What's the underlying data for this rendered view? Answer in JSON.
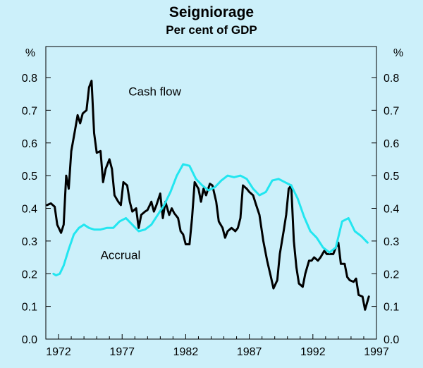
{
  "chart_data": {
    "type": "line",
    "title": "Seigniorage",
    "subtitle": "Per cent of GDP",
    "y_unit_left": "%",
    "y_unit_right": "%",
    "xlim": [
      1971.0,
      1997.0
    ],
    "ylim": [
      0,
      0.8
    ],
    "y_ticks": [
      "0.0",
      "0.1",
      "0.2",
      "0.3",
      "0.4",
      "0.5",
      "0.6",
      "0.7",
      "0.8"
    ],
    "x_ticks": [
      "1972",
      "1977",
      "1982",
      "1987",
      "1992",
      "1997"
    ],
    "grid": false,
    "colors": {
      "background": "#ccf0fa",
      "cash_flow": "#000000",
      "accrual": "#22e6f0",
      "axis": "#000000"
    },
    "series": [
      {
        "name": "Cash flow",
        "color": "#000000",
        "points": [
          [
            1971.1,
            0.41
          ],
          [
            1971.4,
            0.415
          ],
          [
            1971.7,
            0.405
          ],
          [
            1971.9,
            0.35
          ],
          [
            1972.2,
            0.325
          ],
          [
            1972.4,
            0.35
          ],
          [
            1972.6,
            0.5
          ],
          [
            1972.8,
            0.46
          ],
          [
            1973.0,
            0.575
          ],
          [
            1973.3,
            0.64
          ],
          [
            1973.5,
            0.685
          ],
          [
            1973.7,
            0.66
          ],
          [
            1973.9,
            0.69
          ],
          [
            1974.2,
            0.7
          ],
          [
            1974.4,
            0.77
          ],
          [
            1974.6,
            0.79
          ],
          [
            1974.8,
            0.63
          ],
          [
            1975.0,
            0.57
          ],
          [
            1975.3,
            0.575
          ],
          [
            1975.5,
            0.48
          ],
          [
            1975.7,
            0.52
          ],
          [
            1976.0,
            0.55
          ],
          [
            1976.2,
            0.52
          ],
          [
            1976.4,
            0.44
          ],
          [
            1976.7,
            0.42
          ],
          [
            1976.9,
            0.41
          ],
          [
            1977.1,
            0.48
          ],
          [
            1977.4,
            0.47
          ],
          [
            1977.6,
            0.42
          ],
          [
            1977.8,
            0.39
          ],
          [
            1978.1,
            0.4
          ],
          [
            1978.3,
            0.34
          ],
          [
            1978.5,
            0.38
          ],
          [
            1978.8,
            0.39
          ],
          [
            1979.0,
            0.395
          ],
          [
            1979.3,
            0.42
          ],
          [
            1979.5,
            0.39
          ],
          [
            1979.7,
            0.41
          ],
          [
            1980.0,
            0.445
          ],
          [
            1980.2,
            0.37
          ],
          [
            1980.4,
            0.42
          ],
          [
            1980.7,
            0.38
          ],
          [
            1980.9,
            0.4
          ],
          [
            1981.1,
            0.385
          ],
          [
            1981.4,
            0.37
          ],
          [
            1981.6,
            0.33
          ],
          [
            1981.8,
            0.32
          ],
          [
            1982.0,
            0.29
          ],
          [
            1982.3,
            0.29
          ],
          [
            1982.5,
            0.37
          ],
          [
            1982.7,
            0.48
          ],
          [
            1983.0,
            0.46
          ],
          [
            1983.2,
            0.42
          ],
          [
            1983.4,
            0.46
          ],
          [
            1983.6,
            0.44
          ],
          [
            1983.9,
            0.475
          ],
          [
            1984.1,
            0.47
          ],
          [
            1984.4,
            0.42
          ],
          [
            1984.6,
            0.36
          ],
          [
            1984.9,
            0.34
          ],
          [
            1985.1,
            0.31
          ],
          [
            1985.3,
            0.33
          ],
          [
            1985.6,
            0.34
          ],
          [
            1985.9,
            0.33
          ],
          [
            1986.1,
            0.34
          ],
          [
            1986.3,
            0.37
          ],
          [
            1986.5,
            0.47
          ],
          [
            1986.8,
            0.46
          ],
          [
            1987.0,
            0.45
          ],
          [
            1987.3,
            0.44
          ],
          [
            1987.5,
            0.415
          ],
          [
            1987.8,
            0.38
          ],
          [
            1988.1,
            0.3
          ],
          [
            1988.4,
            0.24
          ],
          [
            1988.7,
            0.19
          ],
          [
            1988.9,
            0.155
          ],
          [
            1989.2,
            0.18
          ],
          [
            1989.4,
            0.26
          ],
          [
            1989.7,
            0.33
          ],
          [
            1989.9,
            0.38
          ],
          [
            1990.1,
            0.46
          ],
          [
            1990.3,
            0.47
          ],
          [
            1990.5,
            0.3
          ],
          [
            1990.7,
            0.22
          ],
          [
            1990.9,
            0.17
          ],
          [
            1991.2,
            0.16
          ],
          [
            1991.4,
            0.2
          ],
          [
            1991.7,
            0.24
          ],
          [
            1991.9,
            0.24
          ],
          [
            1992.1,
            0.25
          ],
          [
            1992.4,
            0.24
          ],
          [
            1992.6,
            0.25
          ],
          [
            1992.9,
            0.27
          ],
          [
            1993.1,
            0.26
          ],
          [
            1993.3,
            0.26
          ],
          [
            1993.6,
            0.26
          ],
          [
            1993.8,
            0.28
          ],
          [
            1994.0,
            0.295
          ],
          [
            1994.2,
            0.23
          ],
          [
            1994.5,
            0.23
          ],
          [
            1994.7,
            0.19
          ],
          [
            1994.9,
            0.18
          ],
          [
            1995.2,
            0.175
          ],
          [
            1995.4,
            0.185
          ],
          [
            1995.6,
            0.135
          ],
          [
            1995.9,
            0.13
          ],
          [
            1996.1,
            0.09
          ],
          [
            1996.4,
            0.13
          ]
        ]
      },
      {
        "name": "Accrual",
        "color": "#22e6f0",
        "points": [
          [
            1971.6,
            0.2
          ],
          [
            1971.8,
            0.195
          ],
          [
            1972.1,
            0.2
          ],
          [
            1972.4,
            0.225
          ],
          [
            1972.8,
            0.275
          ],
          [
            1973.2,
            0.32
          ],
          [
            1973.6,
            0.34
          ],
          [
            1974.0,
            0.35
          ],
          [
            1974.4,
            0.34
          ],
          [
            1974.8,
            0.335
          ],
          [
            1975.3,
            0.335
          ],
          [
            1975.8,
            0.34
          ],
          [
            1976.3,
            0.34
          ],
          [
            1976.8,
            0.36
          ],
          [
            1977.3,
            0.37
          ],
          [
            1977.8,
            0.35
          ],
          [
            1978.3,
            0.33
          ],
          [
            1978.8,
            0.335
          ],
          [
            1979.3,
            0.35
          ],
          [
            1979.8,
            0.38
          ],
          [
            1980.3,
            0.41
          ],
          [
            1980.8,
            0.45
          ],
          [
            1981.3,
            0.5
          ],
          [
            1981.8,
            0.535
          ],
          [
            1982.3,
            0.53
          ],
          [
            1982.8,
            0.49
          ],
          [
            1983.3,
            0.47
          ],
          [
            1983.8,
            0.455
          ],
          [
            1984.3,
            0.465
          ],
          [
            1984.8,
            0.485
          ],
          [
            1985.3,
            0.5
          ],
          [
            1985.8,
            0.495
          ],
          [
            1986.3,
            0.5
          ],
          [
            1986.8,
            0.49
          ],
          [
            1987.3,
            0.46
          ],
          [
            1987.8,
            0.44
          ],
          [
            1988.3,
            0.45
          ],
          [
            1988.8,
            0.485
          ],
          [
            1989.3,
            0.49
          ],
          [
            1989.8,
            0.48
          ],
          [
            1990.3,
            0.47
          ],
          [
            1990.8,
            0.43
          ],
          [
            1991.3,
            0.375
          ],
          [
            1991.8,
            0.33
          ],
          [
            1992.3,
            0.31
          ],
          [
            1992.8,
            0.28
          ],
          [
            1993.3,
            0.265
          ],
          [
            1993.8,
            0.28
          ],
          [
            1994.3,
            0.36
          ],
          [
            1994.8,
            0.37
          ],
          [
            1995.3,
            0.33
          ],
          [
            1995.8,
            0.315
          ],
          [
            1996.3,
            0.295
          ]
        ]
      }
    ],
    "annotations": [
      {
        "text": "Cash flow",
        "x": 1977.5,
        "y": 0.745
      },
      {
        "text": "Accrual",
        "x": 1975.3,
        "y": 0.245
      }
    ]
  }
}
